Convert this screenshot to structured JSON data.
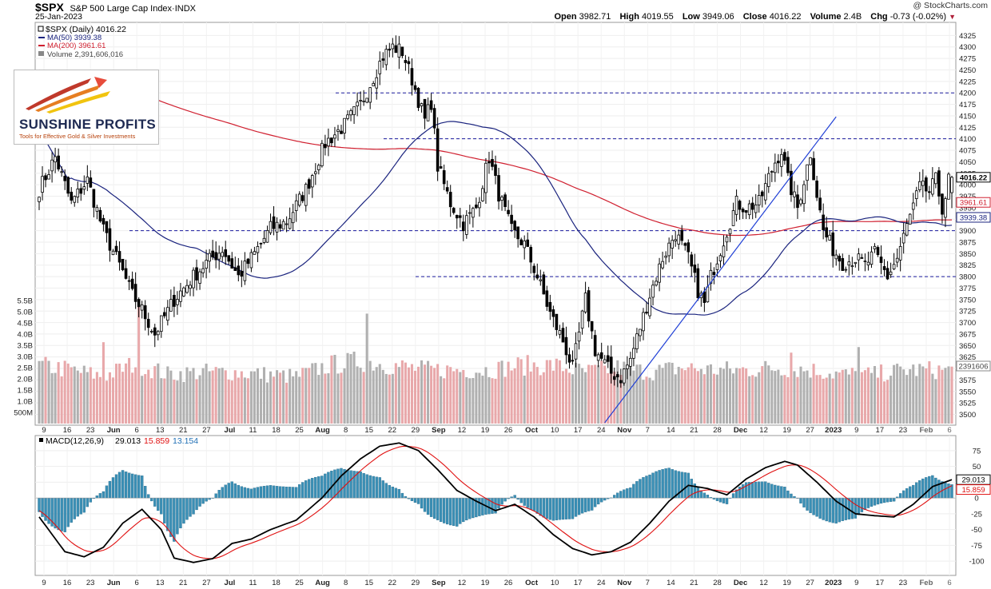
{
  "header": {
    "symbol": "$SPX",
    "name": "S&P 500 Large Cap Index·INDX",
    "date": "25-Jan-2023",
    "copyright": "@ StockCharts.com",
    "quote": {
      "open_label": "Open",
      "open": "3982.71",
      "high_label": "High",
      "high": "4019.55",
      "low_label": "Low",
      "low": "3949.06",
      "close_label": "Close",
      "close": "4016.22",
      "volume_label": "Volume",
      "volume": "2.4B",
      "chg_label": "Chg",
      "chg": "-0.73 (-0.02%)"
    }
  },
  "legend": {
    "price": "$SPX (Daily) 4016.22",
    "ma50": "MA(50) 3939.38",
    "ma200": "MA(200) 3961.61",
    "volume": "Volume 2,391,606,016"
  },
  "logo": {
    "name": "SUNSHINE PROFITS",
    "tagline": "Tools for Effective Gold & Silver Investments"
  },
  "macd_legend": {
    "label": "MACD(12,26,9)",
    "macd": "29.013",
    "signal": "15.859",
    "hist": "13.154"
  },
  "colors": {
    "ma50": "#1a237e",
    "ma200": "#d02030",
    "up_volume": "#b0b0b0",
    "down_volume": "#e8a8aa",
    "macd_line": "#000000",
    "signal_line": "#e01010",
    "histogram": "#3a8fb5",
    "trendline": "#1f3fd6",
    "hline": "#1a1a9e",
    "current_price_tag": "#000000"
  },
  "chart_data": [
    {
      "type": "candlestick",
      "title": "$SPX (Daily)",
      "ylim": [
        3480,
        4350
      ],
      "y_ticks": [
        3500,
        3525,
        3550,
        3575,
        3600,
        3625,
        3650,
        3675,
        3700,
        3725,
        3750,
        3775,
        3800,
        3825,
        3850,
        3875,
        3900,
        3925,
        3950,
        3975,
        4000,
        4025,
        4050,
        4075,
        4100,
        4125,
        4150,
        4175,
        4200,
        4225,
        4250,
        4275,
        4300,
        4325
      ],
      "volume_ticks": [
        "500M",
        "1.0B",
        "1.5B",
        "2.0B",
        "2.5B",
        "3.0B",
        "3.5B",
        "4.0B",
        "4.5B",
        "5.0B",
        "5.5B"
      ],
      "x_tick_labels": [
        "9",
        "16",
        "23",
        "Jun",
        "6",
        "13",
        "21",
        "27",
        "Jul",
        "11",
        "18",
        "25",
        "Aug",
        "8",
        "15",
        "22",
        "29",
        "Sep",
        "12",
        "19",
        "26",
        "Oct",
        "10",
        "17",
        "24",
        "Nov",
        "7",
        "14",
        "21",
        "28",
        "Dec",
        "12",
        "19",
        "27",
        "2023",
        "9",
        "17",
        "23",
        "Feb",
        "6"
      ],
      "anchors": [
        [
          0,
          3990
        ],
        [
          5,
          4060
        ],
        [
          10,
          3960
        ],
        [
          15,
          4010
        ],
        [
          20,
          3900
        ],
        [
          26,
          3810
        ],
        [
          29,
          3760
        ],
        [
          31,
          3740
        ],
        [
          36,
          3675
        ],
        [
          42,
          3750
        ],
        [
          48,
          3800
        ],
        [
          52,
          3830
        ],
        [
          57,
          3860
        ],
        [
          62,
          3800
        ],
        [
          67,
          3850
        ],
        [
          72,
          3905
        ],
        [
          77,
          3920
        ],
        [
          83,
          3990
        ],
        [
          89,
          4090
        ],
        [
          95,
          4130
        ],
        [
          100,
          4175
        ],
        [
          105,
          4250
        ],
        [
          107,
          4280
        ],
        [
          110,
          4300
        ],
        [
          113,
          4290
        ],
        [
          116,
          4230
        ],
        [
          120,
          4140
        ],
        [
          122,
          4180
        ],
        [
          124,
          4040
        ],
        [
          128,
          3960
        ],
        [
          132,
          3915
        ],
        [
          136,
          3950
        ],
        [
          140,
          4060
        ],
        [
          143,
          3980
        ],
        [
          147,
          3900
        ],
        [
          151,
          3870
        ],
        [
          155,
          3800
        ],
        [
          159,
          3720
        ],
        [
          163,
          3660
        ],
        [
          166,
          3600
        ],
        [
          170,
          3750
        ],
        [
          173,
          3640
        ],
        [
          176,
          3610
        ],
        [
          178,
          3590
        ],
        [
          181,
          3580
        ],
        [
          184,
          3620
        ],
        [
          187,
          3690
        ],
        [
          190,
          3760
        ],
        [
          194,
          3840
        ],
        [
          198,
          3895
        ],
        [
          202,
          3840
        ],
        [
          205,
          3770
        ],
        [
          207,
          3740
        ],
        [
          209,
          3800
        ],
        [
          213,
          3880
        ],
        [
          217,
          3960
        ],
        [
          220,
          3950
        ],
        [
          224,
          3960
        ],
        [
          227,
          4015
        ],
        [
          229,
          4050
        ],
        [
          231,
          4075
        ],
        [
          233,
          4010
        ],
        [
          236,
          3950
        ],
        [
          240,
          4070
        ],
        [
          242,
          3980
        ],
        [
          244,
          3900
        ],
        [
          247,
          3860
        ],
        [
          250,
          3830
        ],
        [
          254,
          3840
        ],
        [
          257,
          3825
        ],
        [
          260,
          3850
        ],
        [
          264,
          3800
        ],
        [
          267,
          3840
        ],
        [
          270,
          3910
        ],
        [
          274,
          3995
        ],
        [
          277,
          3985
        ],
        [
          279,
          4010
        ],
        [
          281,
          3950
        ],
        [
          282,
          3975
        ],
        [
          283,
          4010
        ],
        [
          284,
          4016.22
        ]
      ],
      "volume_profile_billions": [
        [
          0,
          2.6
        ],
        [
          10,
          2.4
        ],
        [
          20,
          2.1
        ],
        [
          30,
          2.7
        ],
        [
          40,
          2.2
        ],
        [
          50,
          2.3
        ],
        [
          60,
          2.3
        ],
        [
          70,
          2.2
        ],
        [
          80,
          2.1
        ],
        [
          90,
          2.6
        ],
        [
          100,
          2.8
        ],
        [
          110,
          2.6
        ],
        [
          120,
          2.4
        ],
        [
          130,
          2.4
        ],
        [
          140,
          2.4
        ],
        [
          150,
          2.6
        ],
        [
          160,
          2.6
        ],
        [
          170,
          2.3
        ],
        [
          180,
          2.5
        ],
        [
          190,
          2.3
        ],
        [
          200,
          2.5
        ],
        [
          210,
          2.4
        ],
        [
          220,
          2.4
        ],
        [
          230,
          2.5
        ],
        [
          240,
          2.4
        ],
        [
          250,
          2.2
        ],
        [
          260,
          2.2
        ],
        [
          270,
          2.4
        ],
        [
          284,
          2.39
        ]
      ],
      "series": [
        {
          "name": "MA(50)",
          "last": 3939.38
        },
        {
          "name": "MA(200)",
          "last": 3961.61
        }
      ],
      "horizontal_levels": [
        4200,
        4100,
        3900,
        3800
      ],
      "current_price": 4016.22
    },
    {
      "type": "line",
      "title": "MACD(12,26,9)",
      "ylim": [
        -120,
        95
      ],
      "y_ticks": [
        75,
        50,
        25,
        0,
        -25,
        -50,
        -75,
        -100
      ],
      "series": [
        {
          "name": "MACD",
          "last": 29.013,
          "keypoints": [
            [
              0,
              -30
            ],
            [
              8,
              -85
            ],
            [
              14,
              -93
            ],
            [
              20,
              -78
            ],
            [
              26,
              -40
            ],
            [
              32,
              -18
            ],
            [
              38,
              -50
            ],
            [
              42,
              -95
            ],
            [
              48,
              -102
            ],
            [
              54,
              -96
            ],
            [
              60,
              -72
            ],
            [
              66,
              -65
            ],
            [
              72,
              -50
            ],
            [
              80,
              -35
            ],
            [
              88,
              0
            ],
            [
              94,
              35
            ],
            [
              100,
              62
            ],
            [
              106,
              82
            ],
            [
              112,
              87
            ],
            [
              118,
              75
            ],
            [
              124,
              45
            ],
            [
              130,
              12
            ],
            [
              136,
              -5
            ],
            [
              142,
              -20
            ],
            [
              148,
              -10
            ],
            [
              154,
              -30
            ],
            [
              160,
              -58
            ],
            [
              166,
              -80
            ],
            [
              172,
              -90
            ],
            [
              178,
              -85
            ],
            [
              184,
              -70
            ],
            [
              190,
              -40
            ],
            [
              196,
              -5
            ],
            [
              202,
              20
            ],
            [
              208,
              15
            ],
            [
              214,
              5
            ],
            [
              220,
              30
            ],
            [
              226,
              48
            ],
            [
              232,
              58
            ],
            [
              236,
              52
            ],
            [
              242,
              25
            ],
            [
              248,
              -5
            ],
            [
              254,
              -25
            ],
            [
              260,
              -28
            ],
            [
              266,
              -30
            ],
            [
              272,
              -10
            ],
            [
              278,
              18
            ],
            [
              284,
              29.013
            ]
          ]
        },
        {
          "name": "Signal",
          "last": 15.859
        },
        {
          "name": "Histogram",
          "last": 13.154
        }
      ]
    }
  ]
}
